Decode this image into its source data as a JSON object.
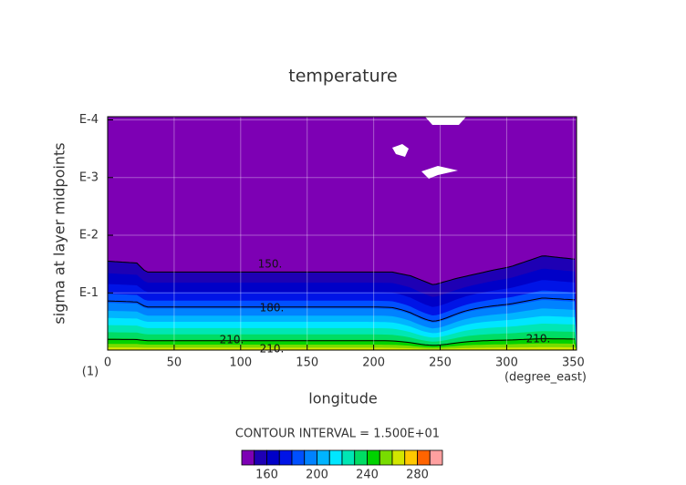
{
  "chart_data": {
    "type": "contour",
    "title": "temperature",
    "x_label": "longitude",
    "x_unit": "(degree_east)",
    "y_label": "sigma at layer midpoints",
    "y_unit": "(1)",
    "xlim": [
      0,
      352.5
    ],
    "xticks": [
      0,
      50,
      100,
      150,
      200,
      250,
      300,
      350
    ],
    "ylim": [
      0.98,
      8.8e-05
    ],
    "log_y": true,
    "yticks": [
      {
        "value": 0.1,
        "label": "E-1"
      },
      {
        "value": 0.01,
        "label": "E-2"
      },
      {
        "value": 0.001,
        "label": "E-3"
      },
      {
        "value": 0.0001,
        "label": "E-4"
      }
    ],
    "grid": true,
    "contour_labels": [
      "150.",
      "180.",
      "210.",
      "210.",
      "210."
    ],
    "contour_interval_text": "CONTOUR INTERVAL = 1.500E+01",
    "colorbar": {
      "clim": [
        140,
        300
      ],
      "ticks": [
        160,
        200,
        240,
        280
      ],
      "colors": [
        "#7d00b4",
        "#1e00b4",
        "#0000c8",
        "#0014e6",
        "#0050ff",
        "#0082ff",
        "#00b4ff",
        "#00e6ff",
        "#00e6b4",
        "#00dc64",
        "#00d200",
        "#78dc00",
        "#d2e600",
        "#ffc800",
        "#ff6400",
        "#ffa0a0"
      ]
    }
  }
}
